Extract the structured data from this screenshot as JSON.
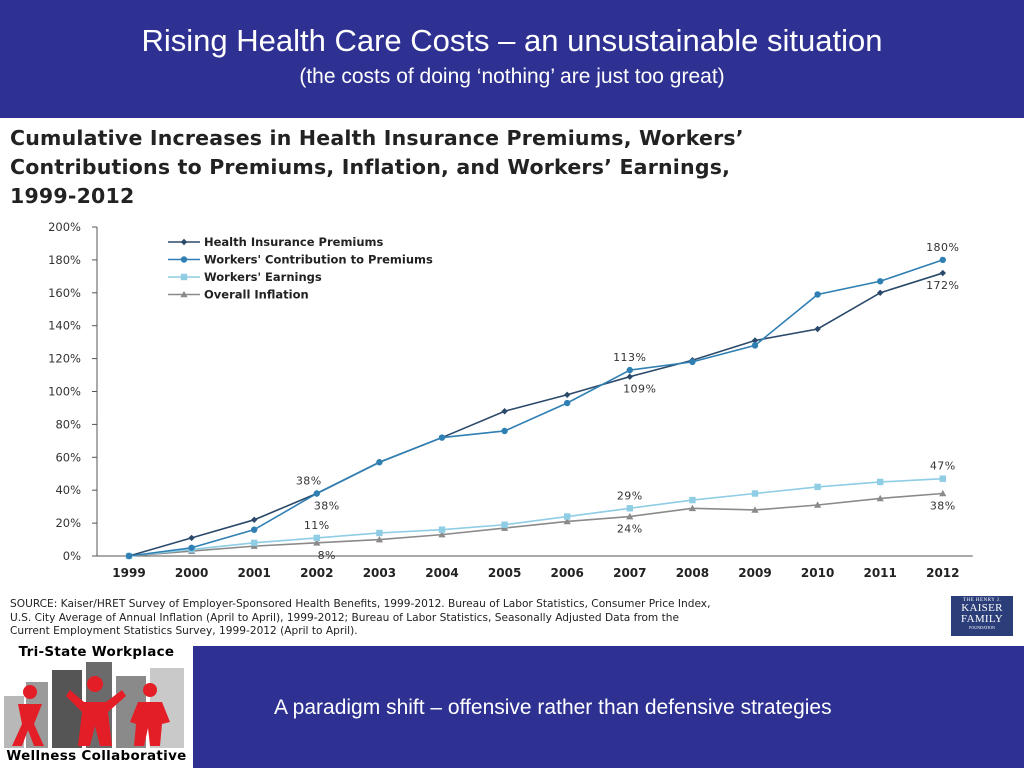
{
  "slide": {
    "title": "Rising Health Care Costs – an unsustainable situation",
    "subtitle": "(the costs of doing ‘nothing’ are just too great)",
    "footer_text": "A paradigm shift – offensive rather than defensive strategies"
  },
  "logo": {
    "top_text": "Tri-State Workplace",
    "bottom_text": "Wellness Collaborative"
  },
  "source_note": [
    "SOURCE: Kaiser/HRET Survey of Employer-Sponsored Health Benefits, 1999-2012. Bureau of Labor Statistics, Consumer Price Index,",
    "U.S. City Average of Annual Inflation (April to April), 1999-2012; Bureau of Labor Statistics, Seasonally Adjusted Data from the",
    "Current Employment Statistics Survey, 1999-2012 (April to April)."
  ],
  "kff_logo": {
    "line1": "THE HENRY J.",
    "line2": "KAISER",
    "line3": "FAMILY",
    "line4": "FOUNDATION"
  },
  "colors": {
    "header_bg": "#2e3192",
    "premiums": "#2b4a6b",
    "contribution": "#2f7fb3",
    "earnings": "#8ecde4",
    "inflation": "#8a8a8a"
  },
  "chart_data": {
    "type": "line",
    "title": "Cumulative Increases in Health Insurance Premiums, Workers’ Contributions to Premiums, Inflation, and Workers’ Earnings, 1999-2012",
    "title_lines": [
      "Cumulative Increases in Health Insurance Premiums, Workers’",
      "Contributions to Premiums, Inflation, and Workers’ Earnings,",
      "1999-2012"
    ],
    "x": [
      "1999",
      "2000",
      "2001",
      "2002",
      "2003",
      "2004",
      "2005",
      "2006",
      "2007",
      "2008",
      "2009",
      "2010",
      "2011",
      "2012"
    ],
    "yticks": [
      0,
      20,
      40,
      60,
      80,
      100,
      120,
      140,
      160,
      180,
      200
    ],
    "ytick_suffix": "%",
    "ylim": [
      0,
      200
    ],
    "legend_position": "top-left",
    "grid": false,
    "series": [
      {
        "name": "Health Insurance Premiums",
        "marker": "diamond",
        "color": "#2b4a6b",
        "values": [
          0,
          11,
          22,
          38,
          57,
          72,
          88,
          98,
          109,
          119,
          131,
          138,
          160,
          172
        ]
      },
      {
        "name": "Workers' Contribution to Premiums",
        "marker": "circle",
        "color": "#2f7fb3",
        "values": [
          0,
          5,
          16,
          38,
          57,
          72,
          76,
          93,
          113,
          118,
          128,
          159,
          167,
          180
        ]
      },
      {
        "name": "Workers' Earnings",
        "marker": "square",
        "color": "#8ecde4",
        "values": [
          0,
          4,
          8,
          11,
          14,
          16,
          19,
          24,
          29,
          34,
          38,
          42,
          45,
          47
        ]
      },
      {
        "name": "Overall Inflation",
        "marker": "triangle",
        "color": "#8a8a8a",
        "values": [
          0,
          3,
          6,
          8,
          10,
          13,
          17,
          21,
          24,
          29,
          28,
          31,
          35,
          38
        ]
      }
    ],
    "annotations": [
      {
        "text": "38%",
        "series": 0,
        "x": "2002",
        "pos": "above-left"
      },
      {
        "text": "38%",
        "series": 1,
        "x": "2002",
        "pos": "below-right"
      },
      {
        "text": "113%",
        "series": 1,
        "x": "2007",
        "pos": "above"
      },
      {
        "text": "109%",
        "series": 0,
        "x": "2007",
        "pos": "below-right"
      },
      {
        "text": "180%",
        "series": 1,
        "x": "2012",
        "pos": "above"
      },
      {
        "text": "172%",
        "series": 0,
        "x": "2012",
        "pos": "below"
      },
      {
        "text": "11%",
        "series": 2,
        "x": "2002",
        "pos": "above"
      },
      {
        "text": "8%",
        "series": 3,
        "x": "2002",
        "pos": "below-right"
      },
      {
        "text": "29%",
        "series": 2,
        "x": "2007",
        "pos": "above"
      },
      {
        "text": "24%",
        "series": 3,
        "x": "2007",
        "pos": "below"
      },
      {
        "text": "47%",
        "series": 2,
        "x": "2012",
        "pos": "above"
      },
      {
        "text": "38%",
        "series": 3,
        "x": "2012",
        "pos": "below"
      }
    ]
  }
}
